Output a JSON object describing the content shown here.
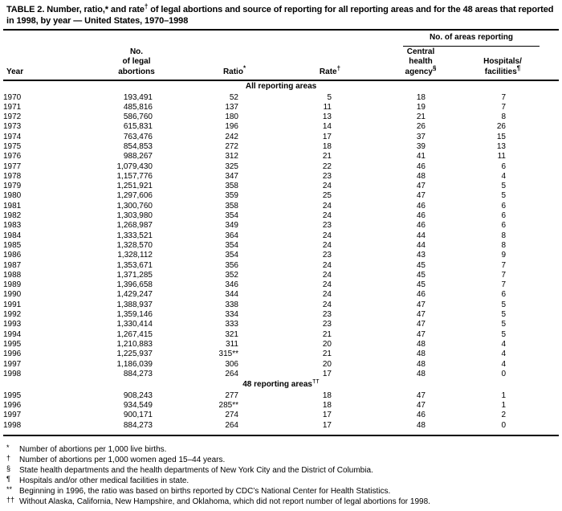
{
  "title": {
    "p1": "TABLE 2. Number, ratio,* and rate",
    "sup": "†",
    "p2": " of legal abortions and source of reporting for all reporting areas and for the 48 areas that reported in 1998, by year — United States, 1970–1998"
  },
  "header": {
    "areas_reporting": "No. of areas reporting",
    "year": "Year",
    "abortions_l1": "No.",
    "abortions_l2": "of legal",
    "abortions_l3": "abortions",
    "ratio_label": "Ratio",
    "ratio_marker": "*",
    "rate_label": "Rate",
    "rate_marker": "†",
    "central_l1": "Central",
    "central_l2": "health",
    "central_l3": "agency",
    "central_marker": "§",
    "hosp_l1": "Hospitals/",
    "hosp_l2": "facilities",
    "hosp_marker": "¶"
  },
  "sections": [
    {
      "label": "All reporting areas",
      "marker": "",
      "rows": [
        [
          "1970",
          "193,491",
          "52",
          "5",
          "18",
          "7"
        ],
        [
          "1971",
          "485,816",
          "137",
          "11",
          "19",
          "7"
        ],
        [
          "1972",
          "586,760",
          "180",
          "13",
          "21",
          "8"
        ],
        [
          "1973",
          "615,831",
          "196",
          "14",
          "26",
          "26"
        ],
        [
          "1974",
          "763,476",
          "242",
          "17",
          "37",
          "15"
        ],
        [
          "1975",
          "854,853",
          "272",
          "18",
          "39",
          "13"
        ],
        [
          "1976",
          "988,267",
          "312",
          "21",
          "41",
          "11"
        ],
        [
          "1977",
          "1,079,430",
          "325",
          "22",
          "46",
          "6"
        ],
        [
          "1978",
          "1,157,776",
          "347",
          "23",
          "48",
          "4"
        ],
        [
          "1979",
          "1,251,921",
          "358",
          "24",
          "47",
          "5"
        ],
        [
          "1980",
          "1,297,606",
          "359",
          "25",
          "47",
          "5"
        ],
        [
          "1981",
          "1,300,760",
          "358",
          "24",
          "46",
          "6"
        ],
        [
          "1982",
          "1,303,980",
          "354",
          "24",
          "46",
          "6"
        ],
        [
          "1983",
          "1,268,987",
          "349",
          "23",
          "46",
          "6"
        ],
        [
          "1984",
          "1,333,521",
          "364",
          "24",
          "44",
          "8"
        ],
        [
          "1985",
          "1,328,570",
          "354",
          "24",
          "44",
          "8"
        ],
        [
          "1986",
          "1,328,112",
          "354",
          "23",
          "43",
          "9"
        ],
        [
          "1987",
          "1,353,671",
          "356",
          "24",
          "45",
          "7"
        ],
        [
          "1988",
          "1,371,285",
          "352",
          "24",
          "45",
          "7"
        ],
        [
          "1989",
          "1,396,658",
          "346",
          "24",
          "45",
          "7"
        ],
        [
          "1990",
          "1,429,247",
          "344",
          "24",
          "46",
          "6"
        ],
        [
          "1991",
          "1,388,937",
          "338",
          "24",
          "47",
          "5"
        ],
        [
          "1992",
          "1,359,146",
          "334",
          "23",
          "47",
          "5"
        ],
        [
          "1993",
          "1,330,414",
          "333",
          "23",
          "47",
          "5"
        ],
        [
          "1994",
          "1,267,415",
          "321",
          "21",
          "47",
          "5"
        ],
        [
          "1995",
          "1,210,883",
          "311",
          "20",
          "48",
          "4"
        ],
        [
          "1996",
          "1,225,937",
          "315**",
          "21",
          "48",
          "4"
        ],
        [
          "1997",
          "1,186,039",
          "306",
          "20",
          "48",
          "4"
        ],
        [
          "1998",
          "884,273",
          "264",
          "17",
          "48",
          "0"
        ]
      ]
    },
    {
      "label": "48 reporting areas",
      "marker": "††",
      "rows": [
        [
          "1995",
          "908,243",
          "277",
          "18",
          "47",
          "1"
        ],
        [
          "1996",
          "934,549",
          "285**",
          "18",
          "47",
          "1"
        ],
        [
          "1997",
          "900,171",
          "274",
          "17",
          "46",
          "2"
        ],
        [
          "1998",
          "884,273",
          "264",
          "17",
          "48",
          "0"
        ]
      ]
    }
  ],
  "footnotes": [
    {
      "marker": "*",
      "text": "Number of abortions per 1,000 live births."
    },
    {
      "marker": "†",
      "text": "Number of abortions per 1,000 women aged 15–44 years."
    },
    {
      "marker": "§",
      "text": "State health departments and the health departments of New York City and the District of Columbia."
    },
    {
      "marker": "¶",
      "text": "Hospitals and/or other medical facilities in state."
    },
    {
      "marker": "**",
      "text": "Beginning in 1996, the ratio was based on births reported by CDC’s National Center for Health Statistics."
    },
    {
      "marker": "††",
      "text": "Without Alaska, California, New Hampshire, and Oklahoma, which did not report number of legal abortions for 1998."
    }
  ]
}
